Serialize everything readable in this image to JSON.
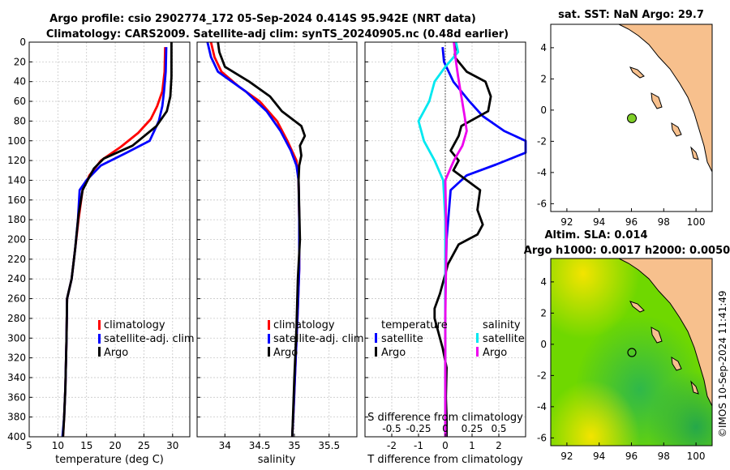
{
  "header": {
    "line1": "Argo profile: csio 2902774_172 05-Sep-2024 0.414S 95.942E (NRT data)",
    "line2": "Climatology: CARS2009. Satellite-adj clim: synTS_20240905.nc (0.48d earlier)"
  },
  "colors": {
    "climatology": "#ff0000",
    "satellite": "#0000ff",
    "argo": "#000000",
    "sal_satellite": "#00e8f0",
    "sal_argo": "#ee00ee",
    "land": "#f7c08d",
    "sla_low": "#2fb84a",
    "sla_mid": "#7ee000",
    "sla_high": "#f3e400"
  },
  "depth_axis": {
    "ticks": [
      0,
      20,
      40,
      60,
      80,
      100,
      120,
      140,
      160,
      180,
      200,
      220,
      240,
      260,
      280,
      300,
      320,
      340,
      360,
      380,
      400
    ],
    "ylim": [
      0,
      400
    ]
  },
  "chart_data": [
    {
      "id": "temperature",
      "type": "line",
      "xlabel": "temperature (deg C)",
      "xlim": [
        5,
        33
      ],
      "xticks": [
        5,
        10,
        15,
        20,
        25,
        30
      ],
      "legend": [
        "climatology",
        "satellite-adj. clim",
        "Argo"
      ],
      "series": [
        {
          "name": "climatology",
          "points": [
            [
              28.7,
              5
            ],
            [
              28.6,
              30
            ],
            [
              28.2,
              50
            ],
            [
              27.3,
              65
            ],
            [
              26.2,
              78
            ],
            [
              24,
              92
            ],
            [
              21,
              106
            ],
            [
              17.5,
              120
            ],
            [
              15.5,
              135
            ],
            [
              14.3,
              150
            ],
            [
              13.6,
              180
            ],
            [
              13,
              210
            ],
            [
              12.4,
              240
            ],
            [
              11.6,
              260
            ],
            [
              11.5,
              300
            ],
            [
              11.3,
              350
            ],
            [
              11.1,
              380
            ],
            [
              10.9,
              400
            ]
          ]
        },
        {
          "name": "satellite-adj. clim",
          "points": [
            [
              28.9,
              5
            ],
            [
              28.8,
              30
            ],
            [
              28.5,
              50
            ],
            [
              28.2,
              65
            ],
            [
              27.6,
              80
            ],
            [
              26,
              100
            ],
            [
              22,
              112
            ],
            [
              17.5,
              125
            ],
            [
              15,
              140
            ],
            [
              13.8,
              150
            ],
            [
              13.5,
              180
            ],
            [
              13,
              210
            ],
            [
              12.4,
              240
            ],
            [
              11.6,
              260
            ],
            [
              11.5,
              300
            ],
            [
              11.3,
              350
            ],
            [
              11.1,
              380
            ],
            [
              10.8,
              400
            ]
          ]
        },
        {
          "name": "Argo",
          "points": [
            [
              29.8,
              0
            ],
            [
              29.8,
              35
            ],
            [
              29.6,
              55
            ],
            [
              29,
              70
            ],
            [
              27.2,
              85
            ],
            [
              23,
              105
            ],
            [
              18,
              118
            ],
            [
              16.3,
              128
            ],
            [
              15.2,
              140
            ],
            [
              14.3,
              150
            ],
            [
              13.6,
              175
            ],
            [
              13,
              210
            ],
            [
              12.4,
              240
            ],
            [
              11.6,
              260
            ],
            [
              11.5,
              300
            ],
            [
              11.3,
              350
            ],
            [
              11.1,
              380
            ],
            [
              10.9,
              400
            ]
          ]
        }
      ]
    },
    {
      "id": "salinity",
      "type": "line",
      "xlabel": "salinity",
      "xlim": [
        33.6,
        35.9
      ],
      "xticks": [
        34,
        34.5,
        35,
        35.5
      ],
      "xtick_labels": [
        "34",
        "34.5",
        "35",
        "35.5"
      ],
      "legend": [
        "climatology",
        "satellite-adj. clim",
        "Argo"
      ],
      "series": [
        {
          "name": "climatology",
          "points": [
            [
              33.8,
              0
            ],
            [
              33.85,
              15
            ],
            [
              33.95,
              30
            ],
            [
              34.2,
              45
            ],
            [
              34.5,
              60
            ],
            [
              34.75,
              80
            ],
            [
              34.9,
              100
            ],
            [
              35.03,
              120
            ],
            [
              35.06,
              140
            ],
            [
              35.07,
              180
            ],
            [
              35.07,
              230
            ],
            [
              35.05,
              270
            ],
            [
              35.02,
              320
            ],
            [
              34.99,
              370
            ],
            [
              34.97,
              400
            ]
          ]
        },
        {
          "name": "satellite-adj. clim",
          "points": [
            [
              33.75,
              0
            ],
            [
              33.8,
              15
            ],
            [
              33.9,
              30
            ],
            [
              34.1,
              40
            ],
            [
              34.3,
              50
            ],
            [
              34.6,
              70
            ],
            [
              34.8,
              90
            ],
            [
              34.95,
              110
            ],
            [
              35.03,
              125
            ],
            [
              35.06,
              140
            ],
            [
              35.07,
              180
            ],
            [
              35.07,
              230
            ],
            [
              35.05,
              270
            ],
            [
              35.02,
              320
            ],
            [
              34.99,
              370
            ],
            [
              34.97,
              400
            ]
          ]
        },
        {
          "name": "Argo",
          "points": [
            [
              33.9,
              0
            ],
            [
              33.92,
              10
            ],
            [
              34.0,
              25
            ],
            [
              34.35,
              40
            ],
            [
              34.65,
              55
            ],
            [
              34.82,
              70
            ],
            [
              35.1,
              85
            ],
            [
              35.15,
              95
            ],
            [
              35.08,
              105
            ],
            [
              35.1,
              115
            ],
            [
              35.07,
              125
            ],
            [
              35.06,
              140
            ],
            [
              35.08,
              200
            ],
            [
              35.05,
              240
            ],
            [
              35.03,
              290
            ],
            [
              35.0,
              340
            ],
            [
              34.98,
              380
            ],
            [
              34.97,
              400
            ]
          ]
        }
      ]
    },
    {
      "id": "difference",
      "type": "line",
      "xlabel": "T difference from climatology",
      "xlabel_top": "S difference from climatology",
      "xlim": [
        -3,
        3
      ],
      "xticks": [
        -2,
        -1,
        0,
        1,
        2
      ],
      "xtick_labels": [
        "-2",
        "-1",
        "0",
        "1",
        "2"
      ],
      "top_ticks": [
        -0.5,
        -0.25,
        0,
        0.25,
        0.5
      ],
      "top_tick_labels": [
        "-0.5",
        "-0.25",
        "0",
        "0.25",
        "0.5"
      ],
      "legend_left_title": "temperature",
      "legend_right_title": "salinity",
      "legend_left": [
        "satellite",
        "Argo"
      ],
      "legend_right": [
        "satellite",
        "Argo"
      ],
      "series": [
        {
          "name": "T satellite",
          "points": [
            [
              -0.1,
              5
            ],
            [
              -0.05,
              20
            ],
            [
              0.3,
              40
            ],
            [
              0.9,
              60
            ],
            [
              1.4,
              75
            ],
            [
              2.2,
              90
            ],
            [
              3.0,
              100
            ],
            [
              3.0,
              112
            ],
            [
              1.9,
              124
            ],
            [
              0.8,
              135
            ],
            [
              0.2,
              150
            ],
            [
              0.05,
              200
            ],
            [
              0,
              260
            ],
            [
              0,
              400
            ]
          ]
        },
        {
          "name": "T Argo",
          "points": [
            [
              0.4,
              0
            ],
            [
              0.35,
              15
            ],
            [
              0.8,
              30
            ],
            [
              1.5,
              40
            ],
            [
              1.7,
              55
            ],
            [
              1.6,
              70
            ],
            [
              0.6,
              85
            ],
            [
              0.5,
              95
            ],
            [
              0.2,
              110
            ],
            [
              0.5,
              120
            ],
            [
              0.3,
              130
            ],
            [
              1.3,
              150
            ],
            [
              1.2,
              170
            ],
            [
              1.4,
              185
            ],
            [
              1.2,
              195
            ],
            [
              0.5,
              205
            ],
            [
              0.1,
              225
            ],
            [
              -0.2,
              255
            ],
            [
              -0.4,
              270
            ],
            [
              -0.4,
              280
            ],
            [
              -0.1,
              310
            ],
            [
              0.05,
              330
            ],
            [
              0.02,
              360
            ],
            [
              0.05,
              380
            ],
            [
              0.05,
              400
            ]
          ]
        },
        {
          "name": "S satellite",
          "points": [
            [
              0.1,
              0
            ],
            [
              0.12,
              10
            ],
            [
              0,
              25
            ],
            [
              -0.1,
              40
            ],
            [
              -0.15,
              60
            ],
            [
              -0.25,
              80
            ],
            [
              -0.2,
              100
            ],
            [
              -0.1,
              120
            ],
            [
              -0.02,
              140
            ],
            [
              0,
              180
            ],
            [
              0,
              250
            ],
            [
              0,
              400
            ]
          ]
        },
        {
          "name": "S Argo",
          "points": [
            [
              0.08,
              0
            ],
            [
              0.1,
              20
            ],
            [
              0.12,
              35
            ],
            [
              0.15,
              55
            ],
            [
              0.18,
              75
            ],
            [
              0.2,
              90
            ],
            [
              0.16,
              105
            ],
            [
              0.08,
              120
            ],
            [
              0,
              140
            ],
            [
              0.01,
              200
            ],
            [
              0,
              280
            ],
            [
              0,
              400
            ]
          ]
        }
      ]
    }
  ],
  "map_sst": {
    "title": "sat. SST: NaN Argo: 29.7",
    "xlim": [
      91,
      101
    ],
    "ylim": [
      -6.5,
      5.5
    ],
    "xticks": [
      92,
      94,
      96,
      98,
      100
    ],
    "yticks": [
      4,
      2,
      0,
      -2,
      -4,
      -6
    ],
    "argo_lon": 95.942,
    "argo_lat": -0.414,
    "marker_color": "#7fcf28"
  },
  "map_sla": {
    "title1": "Altim. SLA: 0.014",
    "title2": "Argo h1000: 0.0017 h2000: 0.0050",
    "xlim": [
      91,
      101
    ],
    "ylim": [
      -6.5,
      5.5
    ],
    "xticks": [
      92,
      94,
      96,
      98,
      100
    ],
    "yticks": [
      4,
      2,
      0,
      -2,
      -4,
      -6
    ],
    "argo_lon": 95.942,
    "argo_lat": -0.414
  },
  "side_label": "©IMOS 10-Sep-2024 11:41:49"
}
